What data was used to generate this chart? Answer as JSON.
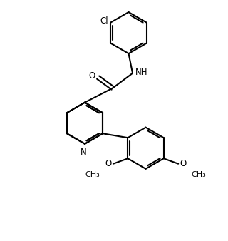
{
  "bg": "#ffffff",
  "lc": "#000000",
  "lw": 1.5,
  "fs": 8.5,
  "figsize": [
    3.2,
    3.38
  ],
  "dpi": 100,
  "xlim": [
    0.0,
    8.5
  ],
  "ylim": [
    0.0,
    9.0
  ]
}
